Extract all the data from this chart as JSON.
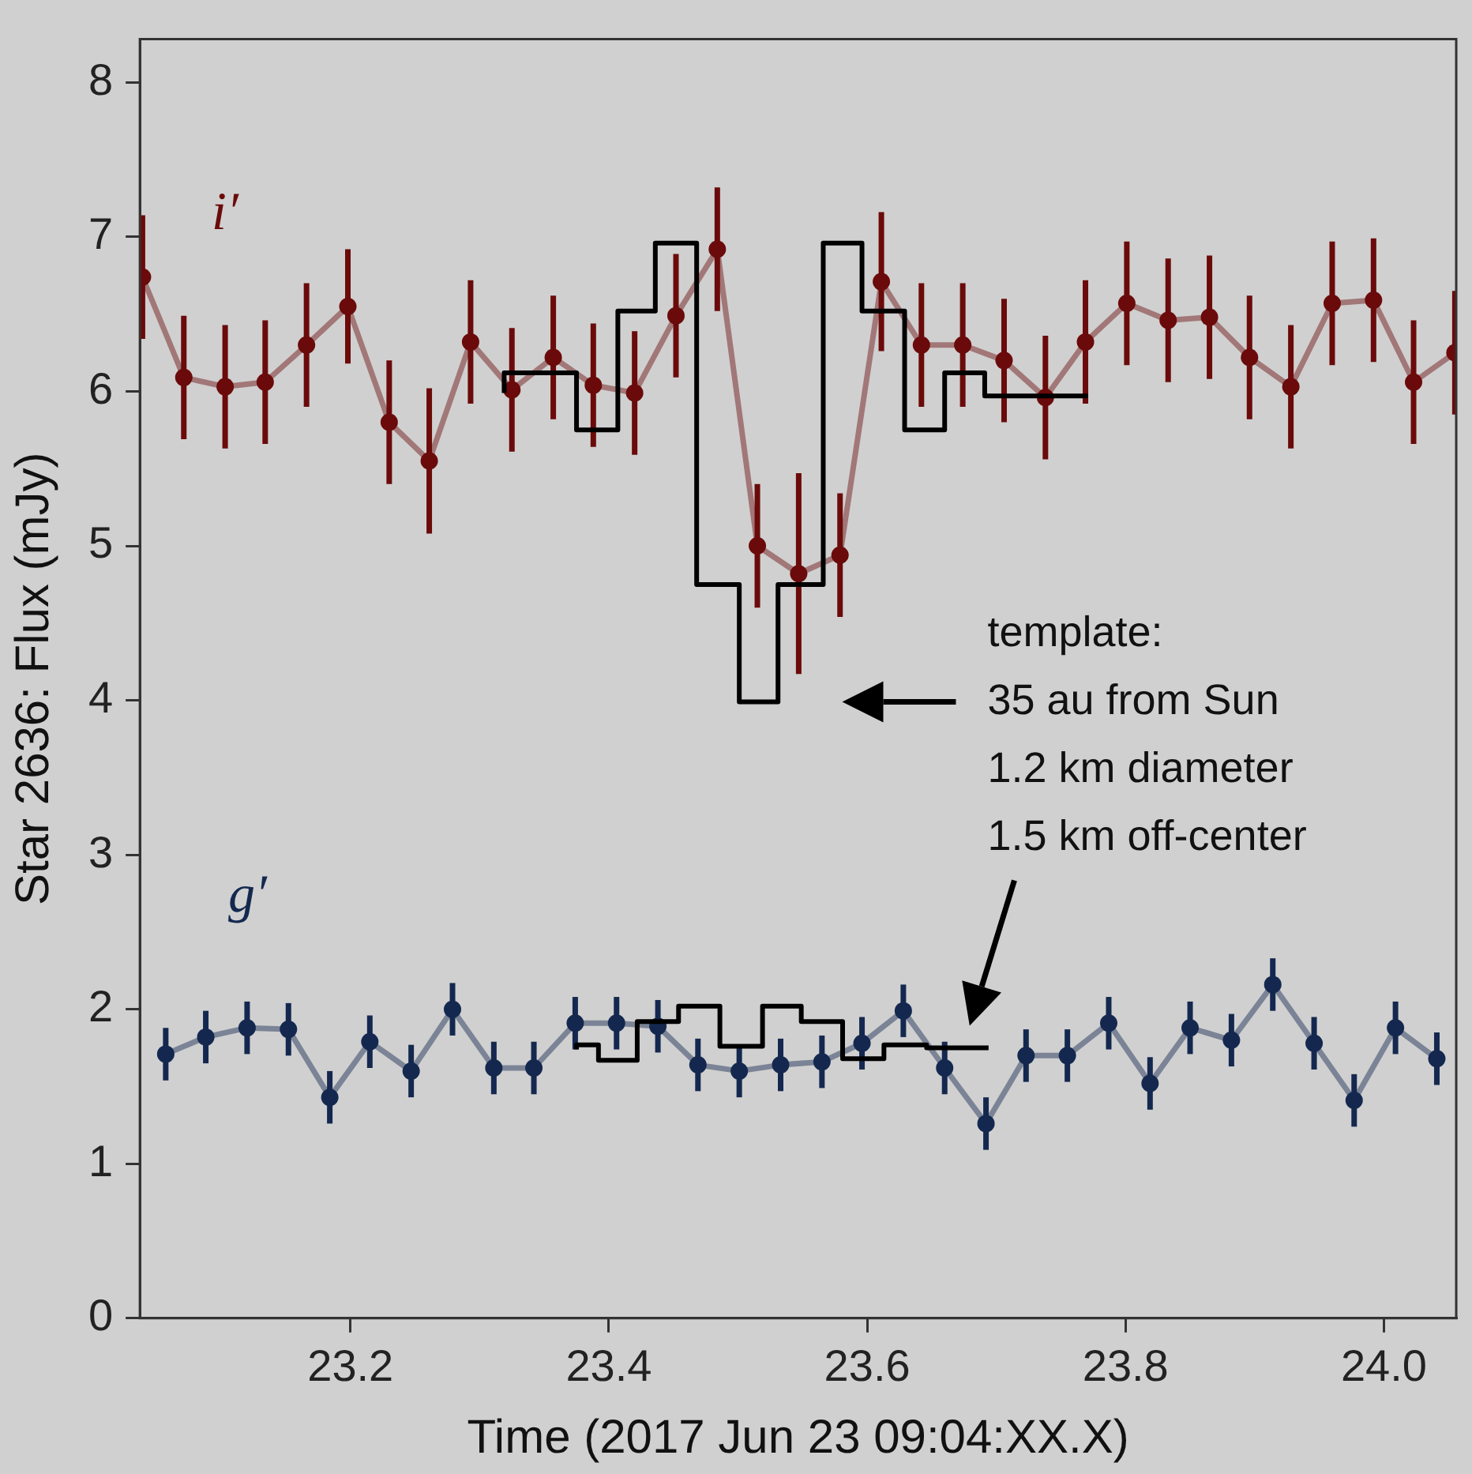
{
  "chart_data": {
    "type": "line",
    "xlabel": "Time (2017 Jun 23 09:04:XX.X)",
    "ylabel": "Star 2636: Flux (mJy)",
    "xlim": [
      23.037,
      24.056
    ],
    "ylim": [
      0,
      8.28
    ],
    "xticks": [
      23.2,
      23.4,
      23.6,
      23.8,
      {
        "value": 24,
        "label": "24.0"
      }
    ],
    "yticks": [
      0,
      1,
      2,
      3,
      4,
      5,
      6,
      7,
      8
    ],
    "marker": "circle",
    "series": [
      {
        "name": "i′",
        "color": "#6b0a0a",
        "x": [
          23.039,
          23.071,
          23.103,
          23.134,
          23.166,
          23.198,
          23.23,
          23.261,
          23.293,
          23.325,
          23.357,
          23.388,
          23.42,
          23.452,
          23.484,
          23.515,
          23.547,
          23.579,
          23.611,
          23.642,
          23.674,
          23.706,
          23.738,
          23.769,
          23.801,
          23.833,
          23.865,
          23.896,
          23.928,
          23.96,
          23.992,
          24.023,
          24.055
        ],
        "values": [
          6.74,
          6.09,
          6.03,
          6.06,
          6.3,
          6.55,
          5.8,
          5.55,
          6.32,
          6.01,
          6.22,
          6.04,
          5.99,
          6.49,
          6.92,
          5.0,
          4.82,
          4.94,
          6.71,
          6.3,
          6.3,
          6.2,
          5.96,
          6.32,
          6.57,
          6.46,
          6.48,
          6.22,
          6.03,
          6.57,
          6.59,
          6.06,
          6.25
        ],
        "errors": [
          0.4,
          0.4,
          0.4,
          0.4,
          0.4,
          0.37,
          0.4,
          0.47,
          0.4,
          0.4,
          0.4,
          0.4,
          0.4,
          0.4,
          0.4,
          0.4,
          0.65,
          0.4,
          0.45,
          0.4,
          0.4,
          0.4,
          0.4,
          0.4,
          0.4,
          0.4,
          0.4,
          0.4,
          0.4,
          0.4,
          0.4,
          0.4,
          0.4
        ]
      },
      {
        "name": "g′",
        "color": "#14284f",
        "x": [
          23.057,
          23.088,
          23.12,
          23.152,
          23.184,
          23.215,
          23.247,
          23.279,
          23.311,
          23.342,
          23.374,
          23.406,
          23.438,
          23.469,
          23.501,
          23.533,
          23.565,
          23.596,
          23.628,
          23.66,
          23.692,
          23.723,
          23.755,
          23.787,
          23.819,
          23.85,
          23.882,
          23.914,
          23.946,
          23.977,
          24.009,
          24.041
        ],
        "values": [
          1.71,
          1.82,
          1.88,
          1.87,
          1.43,
          1.79,
          1.6,
          2.0,
          1.62,
          1.62,
          1.91,
          1.91,
          1.89,
          1.64,
          1.6,
          1.64,
          1.66,
          1.78,
          1.99,
          1.62,
          1.26,
          1.7,
          1.7,
          1.91,
          1.52,
          1.88,
          1.8,
          2.16,
          1.78,
          1.41,
          1.88,
          1.68
        ],
        "errors": [
          0.17,
          0.17,
          0.17,
          0.17,
          0.17,
          0.17,
          0.17,
          0.17,
          0.17,
          0.17,
          0.17,
          0.17,
          0.17,
          0.17,
          0.17,
          0.17,
          0.17,
          0.17,
          0.17,
          0.17,
          0.17,
          0.17,
          0.17,
          0.17,
          0.17,
          0.17,
          0.17,
          0.17,
          0.17,
          0.17,
          0.17,
          0.17
        ]
      },
      {
        "type": "step",
        "color": "#000000",
        "marker": "none",
        "x": [
          23.319,
          23.375,
          23.407,
          23.436,
          23.468,
          23.501,
          23.531,
          23.566,
          23.596,
          23.629,
          23.66,
          23.691,
          23.723,
          23.771
        ],
        "values": [
          5.99,
          6.12,
          5.75,
          6.52,
          6.96,
          4.75,
          3.99,
          4.75,
          6.96,
          6.52,
          5.75,
          6.12,
          5.97,
          5.97
        ]
      },
      {
        "type": "step",
        "color": "#000000",
        "marker": "none",
        "x": [
          23.375,
          23.392,
          23.422,
          23.454,
          23.486,
          23.519,
          23.549,
          23.581,
          23.613,
          23.646,
          23.679,
          23.694
        ],
        "values": [
          1.74,
          1.77,
          1.67,
          1.92,
          2.02,
          1.76,
          2.02,
          1.92,
          1.68,
          1.77,
          1.75,
          1.75
        ]
      }
    ],
    "annotations": [
      "template:\n35 au from Sun\n1.2 km diameter\n1.5 km off-center"
    ]
  }
}
